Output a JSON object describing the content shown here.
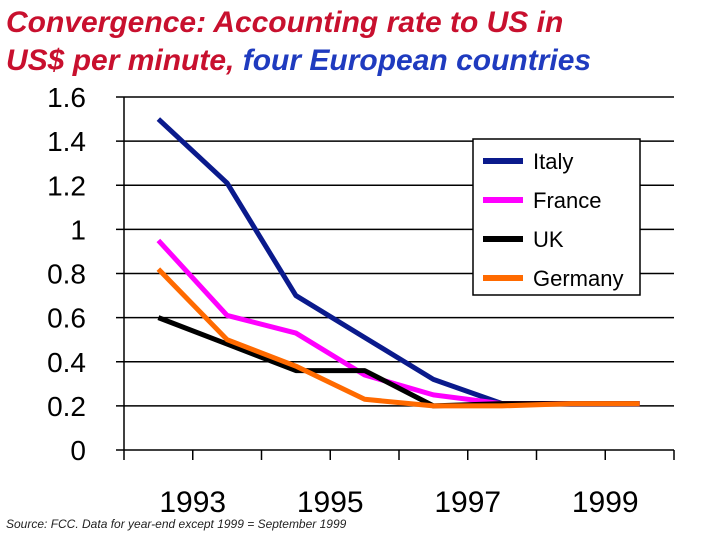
{
  "title_part1": "Convergence: Accounting rate to US in",
  "title_part2": "US$ per minute,",
  "title_part3": "four European countries",
  "source": "Source: FCC. Data for year-end except 1999 = September 1999",
  "colors": {
    "title_red": "#c8102e",
    "title_blue": "#1f3bbf"
  },
  "chart_data": {
    "type": "line",
    "x": [
      1992,
      1993,
      1994,
      1995,
      1996,
      1997,
      1998,
      1999
    ],
    "x_tick_labels": [
      "1993",
      "1995",
      "1997",
      "1999"
    ],
    "y_tick_labels": [
      "0",
      "0.2",
      "0.4",
      "0.6",
      "0.8",
      "1",
      "1.2",
      "1.4",
      "1.6"
    ],
    "ylim": [
      0,
      1.6
    ],
    "grid": "horizontal",
    "legend_position": "top-right",
    "series": [
      {
        "name": "Italy",
        "color": "#0a1a8c",
        "values": [
          1.5,
          1.21,
          0.7,
          0.51,
          0.32,
          0.21,
          0.21,
          0.21
        ]
      },
      {
        "name": "France",
        "color": "#ff00ff",
        "values": [
          0.95,
          0.61,
          0.53,
          0.34,
          0.25,
          0.21,
          0.21,
          0.21
        ]
      },
      {
        "name": "UK",
        "color": "#000000",
        "values": [
          0.6,
          0.48,
          0.36,
          0.36,
          0.2,
          0.21,
          0.21,
          0.21
        ]
      },
      {
        "name": "Germany",
        "color": "#ff6a00",
        "values": [
          0.82,
          0.5,
          0.38,
          0.23,
          0.2,
          0.2,
          0.21,
          0.21
        ]
      }
    ]
  }
}
